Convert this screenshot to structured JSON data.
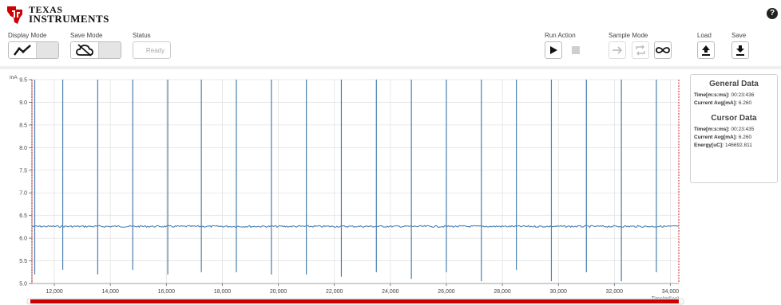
{
  "header": {
    "logo_line1": "TEXAS",
    "logo_line2": "INSTRUMENTS",
    "help_label": "?"
  },
  "toolbar": {
    "display_mode_label": "Display Mode",
    "save_mode_label": "Save Mode",
    "status_label": "Status",
    "status_value": "Ready",
    "run_action_label": "Run Action",
    "sample_mode_label": "Sample Mode",
    "load_label": "Load",
    "save_label": "Save"
  },
  "icons": {
    "display_mode": "line-graph-icon",
    "save_mode": "cloud-off-icon",
    "play": "play-icon",
    "stop": "stop-icon",
    "sample_single": "arrow-right-icon",
    "sample_repeat": "repeat-icon",
    "sample_continuous": "infinity-icon",
    "load": "upload-icon",
    "save": "download-icon",
    "help": "help-icon"
  },
  "colors": {
    "trace": "#4a7fb0",
    "marker": "#cc0000",
    "brand": "#cc0000",
    "scrollbar": "#cc0000"
  },
  "general_data": {
    "title": "General Data",
    "time_label": "Time[m:s:ms]:",
    "time_value": "00:23:436",
    "current_label": "Current Avg[mA]:",
    "current_value": "6.260"
  },
  "cursor_data": {
    "title": "Cursor Data",
    "time_label": "Time[m:s:ms]:",
    "time_value": "00:23:435",
    "current_label": "Current Avg[mA]:",
    "current_value": "6.260",
    "energy_label": "Energy[uC]:",
    "energy_value": "146692.811"
  },
  "chart_data": {
    "type": "line",
    "ylabel": "mA",
    "xlabel": "Time[mSec]",
    "ylim": [
      5.0,
      9.5
    ],
    "xlim": [
      11200,
      34300
    ],
    "y_ticks": [
      {
        "value": 5.0,
        "label": "5.0"
      },
      {
        "value": 5.5,
        "label": "5.5"
      },
      {
        "value": 6.0,
        "label": "6.0"
      },
      {
        "value": 6.5,
        "label": "6.5"
      },
      {
        "value": 7.0,
        "label": "7.0"
      },
      {
        "value": 7.5,
        "label": "7.5"
      },
      {
        "value": 8.0,
        "label": "8.0"
      },
      {
        "value": 8.5,
        "label": "8.5"
      },
      {
        "value": 9.0,
        "label": "9.0"
      },
      {
        "value": 9.5,
        "label": "9.5"
      }
    ],
    "x_ticks": [
      {
        "value": 12000,
        "label": "12,000"
      },
      {
        "value": 14000,
        "label": "14,000"
      },
      {
        "value": 16000,
        "label": "16,000"
      },
      {
        "value": 18000,
        "label": "18,000"
      },
      {
        "value": 20000,
        "label": "20,000"
      },
      {
        "value": 22000,
        "label": "22,000"
      },
      {
        "value": 24000,
        "label": "24,000"
      },
      {
        "value": 26000,
        "label": "26,000"
      },
      {
        "value": 28000,
        "label": "28,000"
      },
      {
        "value": 30000,
        "label": "30,000"
      },
      {
        "value": 32000,
        "label": "32,000"
      },
      {
        "value": 34000,
        "label": "34,000"
      }
    ],
    "baseline_value": 6.26,
    "spikes": [
      {
        "x": 11300,
        "max": 9.5,
        "min": 5.2
      },
      {
        "x": 12300,
        "max": 9.5,
        "min": 5.3
      },
      {
        "x": 13550,
        "max": 9.5,
        "min": 5.2
      },
      {
        "x": 14800,
        "max": 9.5,
        "min": 5.3
      },
      {
        "x": 16050,
        "max": 9.5,
        "min": 5.2
      },
      {
        "x": 17250,
        "max": 9.5,
        "min": 5.25
      },
      {
        "x": 18500,
        "max": 9.5,
        "min": 5.25
      },
      {
        "x": 19750,
        "max": 9.5,
        "min": 5.2
      },
      {
        "x": 21000,
        "max": 9.5,
        "min": 5.2
      },
      {
        "x": 22250,
        "max": 9.5,
        "min": 5.15
      },
      {
        "x": 23500,
        "max": 9.5,
        "min": 5.25
      },
      {
        "x": 24750,
        "max": 9.5,
        "min": 5.1
      },
      {
        "x": 26000,
        "max": 9.5,
        "min": 5.25
      },
      {
        "x": 27250,
        "max": 9.5,
        "min": 5.05
      },
      {
        "x": 28500,
        "max": 9.5,
        "min": 5.3
      },
      {
        "x": 29750,
        "max": 9.5,
        "min": 5.05
      },
      {
        "x": 31000,
        "max": 9.5,
        "min": 5.25
      },
      {
        "x": 32250,
        "max": 9.5,
        "min": 5.05
      },
      {
        "x": 33500,
        "max": 9.5,
        "min": 5.25
      }
    ],
    "cursor_x": 34300,
    "grid": true,
    "legend": "none"
  }
}
